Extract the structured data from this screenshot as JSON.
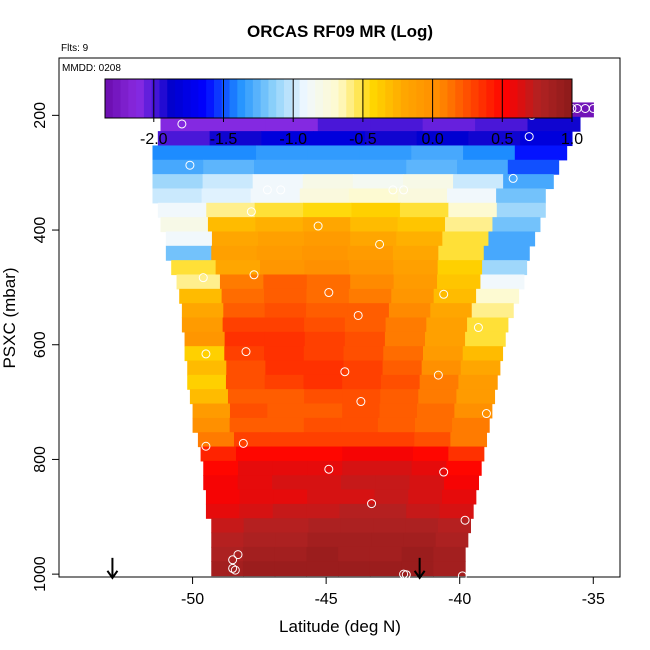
{
  "title": "ORCAS RF09 MR (Log)",
  "flights_label": "Flts: 9",
  "date_label": "MMDD: 0208",
  "colors": {
    "frame": "#000000",
    "marker": "#ffffff",
    "colorbar_stops": [
      "#6a0dad",
      "#8a2be2",
      "#0000cd",
      "#0000ff",
      "#1e90ff",
      "#87cefa",
      "#f0f8ff",
      "#fffacd",
      "#ffd700",
      "#ffa500",
      "#ff8c00",
      "#ff4500",
      "#ff0000",
      "#b22222",
      "#8b1a1a"
    ]
  },
  "chart_data": {
    "type": "heatmap",
    "title": "ORCAS RF09 MR (Log)",
    "xlabel": "Latitude (deg N)",
    "ylabel": "PSXC (mbar)",
    "xlim": [
      -55,
      -34
    ],
    "ylim": [
      1005,
      100
    ],
    "x_ticks": [
      -50,
      -45,
      -40,
      -35
    ],
    "x_tick_labels": [
      "-50",
      "-45",
      "-40",
      "-35"
    ],
    "y_ticks": [
      200,
      400,
      600,
      800,
      1000
    ],
    "y_tick_labels": [
      "200",
      "400",
      "600",
      "800",
      "1000"
    ],
    "colorbar": {
      "range": [
        -2.35,
        1.0
      ],
      "ticks": [
        -2.0,
        -1.5,
        -1.0,
        -0.5,
        0.0,
        0.5,
        1.0
      ],
      "tick_labels": [
        "-2.0",
        "-1.5",
        "-1.0",
        "-0.5",
        "0.0",
        "0.5",
        "1.0"
      ]
    },
    "layers": [
      {
        "p": 190,
        "lat_start": -51.0,
        "lat_end": -35.0,
        "values": [
          -2.3,
          -2.3,
          -2.3,
          -2.3,
          -2.3,
          -2.25,
          -2.3,
          -2.3
        ]
      },
      {
        "p": 215,
        "lat_start": -51.2,
        "lat_end": -35.5,
        "values": [
          -2.1,
          -2.1,
          -2.1,
          -2.0,
          -2.0,
          -2.05,
          -2.0,
          -1.9
        ]
      },
      {
        "p": 240,
        "lat_start": -51.3,
        "lat_end": -35.8,
        "values": [
          -2.0,
          -1.9,
          -1.8,
          -1.8,
          -1.9,
          -1.85,
          -1.9,
          -1.8
        ]
      },
      {
        "p": 265,
        "lat_start": -51.5,
        "lat_end": -36.0,
        "values": [
          -1.4,
          -1.4,
          -1.35,
          -1.35,
          -1.35,
          -1.3,
          -1.4,
          -1.6
        ]
      },
      {
        "p": 290,
        "lat_start": -51.5,
        "lat_end": -36.3,
        "values": [
          -1.3,
          -1.25,
          -1.3,
          -1.3,
          -1.3,
          -1.25,
          -1.3,
          -1.5
        ]
      },
      {
        "p": 315,
        "lat_start": -51.5,
        "lat_end": -36.5,
        "values": [
          -1.1,
          -1.0,
          -0.9,
          -0.8,
          -0.85,
          -0.8,
          -1.0,
          -1.3
        ]
      },
      {
        "p": 340,
        "lat_start": -51.5,
        "lat_end": -36.8,
        "values": [
          -1.0,
          -0.95,
          -0.9,
          -0.75,
          -0.7,
          -0.75,
          -0.9,
          -1.2
        ]
      },
      {
        "p": 365,
        "lat_start": -51.3,
        "lat_end": -36.8,
        "values": [
          -0.9,
          -0.6,
          -0.5,
          -0.45,
          -0.4,
          -0.5,
          -0.7,
          -1.1
        ]
      },
      {
        "p": 390,
        "lat_start": -51.2,
        "lat_end": -37.0,
        "values": [
          -0.8,
          -0.3,
          -0.25,
          -0.2,
          -0.3,
          -0.35,
          -0.6,
          -1.2
        ]
      },
      {
        "p": 415,
        "lat_start": -51.0,
        "lat_end": -37.2,
        "values": [
          -0.9,
          -0.2,
          -0.15,
          -0.1,
          -0.2,
          -0.25,
          -0.5,
          -1.3
        ]
      },
      {
        "p": 440,
        "lat_start": -51.0,
        "lat_end": -37.4,
        "values": [
          -1.2,
          -0.15,
          -0.1,
          -0.05,
          -0.1,
          -0.2,
          -0.5,
          -1.3
        ]
      },
      {
        "p": 465,
        "lat_start": -50.8,
        "lat_end": -37.5,
        "values": [
          -0.5,
          -0.2,
          -0.05,
          0.0,
          -0.05,
          -0.15,
          -0.4,
          -1.1
        ]
      },
      {
        "p": 490,
        "lat_start": -50.6,
        "lat_end": -37.6,
        "values": [
          -0.6,
          0.1,
          0.2,
          0.15,
          0.05,
          -0.1,
          -0.35,
          -0.9
        ]
      },
      {
        "p": 515,
        "lat_start": -50.5,
        "lat_end": -37.8,
        "values": [
          -0.3,
          0.15,
          0.2,
          0.15,
          0.1,
          -0.05,
          -0.3,
          -0.7
        ]
      },
      {
        "p": 540,
        "lat_start": -50.4,
        "lat_end": -38.0,
        "values": [
          -0.2,
          0.2,
          0.25,
          0.2,
          0.2,
          0.05,
          -0.2,
          -0.6
        ]
      },
      {
        "p": 565,
        "lat_start": -50.4,
        "lat_end": -38.2,
        "values": [
          -0.1,
          0.3,
          0.3,
          0.25,
          0.2,
          0.1,
          -0.15,
          -0.5
        ]
      },
      {
        "p": 590,
        "lat_start": -50.3,
        "lat_end": -38.3,
        "values": [
          -0.05,
          0.35,
          0.35,
          0.3,
          0.25,
          0.1,
          -0.15,
          -0.5
        ]
      },
      {
        "p": 615,
        "lat_start": -50.3,
        "lat_end": -38.4,
        "values": [
          -0.4,
          0.3,
          0.35,
          0.3,
          0.25,
          0.15,
          -0.1,
          -0.3
        ]
      },
      {
        "p": 640,
        "lat_start": -50.2,
        "lat_end": -38.5,
        "values": [
          -0.3,
          0.25,
          0.35,
          0.35,
          0.3,
          0.2,
          0.0,
          -0.2
        ]
      },
      {
        "p": 665,
        "lat_start": -50.2,
        "lat_end": -38.6,
        "values": [
          -0.4,
          0.25,
          0.3,
          0.35,
          0.3,
          0.25,
          0.1,
          -0.1
        ]
      },
      {
        "p": 690,
        "lat_start": -50.1,
        "lat_end": -38.7,
        "values": [
          -0.3,
          0.2,
          0.2,
          0.25,
          0.25,
          0.2,
          0.1,
          -0.1
        ]
      },
      {
        "p": 715,
        "lat_start": -50.0,
        "lat_end": -38.8,
        "values": [
          -0.1,
          0.25,
          0.2,
          0.2,
          0.25,
          0.2,
          0.15,
          0.0
        ]
      },
      {
        "p": 740,
        "lat_start": -50.0,
        "lat_end": -38.9,
        "values": [
          0.0,
          0.2,
          0.2,
          0.25,
          0.25,
          0.2,
          0.15,
          0.1
        ]
      },
      {
        "p": 765,
        "lat_start": -49.8,
        "lat_end": -39.0,
        "values": [
          0.1,
          0.3,
          0.3,
          0.3,
          0.3,
          0.3,
          0.25,
          0.1
        ]
      },
      {
        "p": 790,
        "lat_start": -49.7,
        "lat_end": -39.1,
        "values": [
          0.4,
          0.5,
          0.5,
          0.5,
          0.55,
          0.55,
          0.5,
          0.35
        ]
      },
      {
        "p": 815,
        "lat_start": -49.6,
        "lat_end": -39.2,
        "values": [
          0.5,
          0.6,
          0.6,
          0.6,
          0.65,
          0.65,
          0.6,
          0.5
        ]
      },
      {
        "p": 840,
        "lat_start": -49.6,
        "lat_end": -39.3,
        "values": [
          0.55,
          0.6,
          0.65,
          0.65,
          0.7,
          0.7,
          0.65,
          0.55
        ]
      },
      {
        "p": 865,
        "lat_start": -49.5,
        "lat_end": -39.4,
        "values": [
          0.55,
          0.6,
          0.6,
          0.65,
          0.65,
          0.7,
          0.65,
          0.6
        ]
      },
      {
        "p": 890,
        "lat_start": -49.5,
        "lat_end": -39.5,
        "values": [
          0.6,
          0.65,
          0.7,
          0.7,
          0.75,
          0.75,
          0.7,
          0.65
        ]
      },
      {
        "p": 915,
        "lat_start": -49.3,
        "lat_end": -39.6,
        "values": [
          0.7,
          0.75,
          0.75,
          0.8,
          0.8,
          0.8,
          0.8,
          0.75
        ]
      },
      {
        "p": 940,
        "lat_start": -49.3,
        "lat_end": -39.7,
        "values": [
          0.75,
          0.8,
          0.8,
          0.85,
          0.85,
          0.85,
          0.85,
          0.8
        ]
      },
      {
        "p": 965,
        "lat_start": -49.3,
        "lat_end": -39.8,
        "values": [
          0.8,
          0.85,
          0.85,
          0.9,
          0.85,
          0.85,
          0.9,
          0.85
        ]
      },
      {
        "p": 990,
        "lat_start": -49.3,
        "lat_end": -39.8,
        "values": [
          0.85,
          0.9,
          0.9,
          0.9,
          0.9,
          0.9,
          0.9,
          0.85
        ]
      }
    ],
    "observations": [
      {
        "lat": -50.8,
        "p": 188
      },
      {
        "lat": -50.4,
        "p": 215
      },
      {
        "lat": -37.0,
        "p": 188
      },
      {
        "lat": -36.7,
        "p": 188
      },
      {
        "lat": -36.3,
        "p": 188
      },
      {
        "lat": -36.0,
        "p": 188
      },
      {
        "lat": -35.8,
        "p": 188
      },
      {
        "lat": -35.6,
        "p": 188
      },
      {
        "lat": -35.3,
        "p": 188
      },
      {
        "lat": -35.0,
        "p": 188
      },
      {
        "lat": -37.3,
        "p": 200
      },
      {
        "lat": -37.4,
        "p": 237
      },
      {
        "lat": -50.1,
        "p": 287
      },
      {
        "lat": -38.0,
        "p": 310
      },
      {
        "lat": -47.2,
        "p": 330
      },
      {
        "lat": -46.7,
        "p": 330
      },
      {
        "lat": -42.5,
        "p": 330
      },
      {
        "lat": -42.1,
        "p": 330
      },
      {
        "lat": -47.8,
        "p": 368
      },
      {
        "lat": -45.3,
        "p": 393
      },
      {
        "lat": -43.0,
        "p": 425
      },
      {
        "lat": -49.6,
        "p": 483
      },
      {
        "lat": -47.7,
        "p": 478
      },
      {
        "lat": -44.9,
        "p": 509
      },
      {
        "lat": -40.6,
        "p": 512
      },
      {
        "lat": -43.8,
        "p": 549
      },
      {
        "lat": -39.3,
        "p": 570
      },
      {
        "lat": -49.5,
        "p": 616
      },
      {
        "lat": -48.0,
        "p": 612
      },
      {
        "lat": -44.3,
        "p": 647
      },
      {
        "lat": -40.8,
        "p": 653
      },
      {
        "lat": -43.7,
        "p": 699
      },
      {
        "lat": -39.0,
        "p": 720
      },
      {
        "lat": -49.5,
        "p": 777
      },
      {
        "lat": -48.1,
        "p": 772
      },
      {
        "lat": -44.9,
        "p": 817
      },
      {
        "lat": -40.6,
        "p": 822
      },
      {
        "lat": -43.3,
        "p": 877
      },
      {
        "lat": -39.8,
        "p": 906
      },
      {
        "lat": -48.3,
        "p": 966
      },
      {
        "lat": -48.5,
        "p": 975
      },
      {
        "lat": -48.5,
        "p": 990
      },
      {
        "lat": -48.4,
        "p": 993
      },
      {
        "lat": -42.1,
        "p": 1000
      },
      {
        "lat": -42.0,
        "p": 1001
      },
      {
        "lat": -39.9,
        "p": 1003
      }
    ],
    "arrows": [
      {
        "lat": -53.0,
        "p": 1003
      },
      {
        "lat": -41.5,
        "p": 1003
      }
    ]
  }
}
